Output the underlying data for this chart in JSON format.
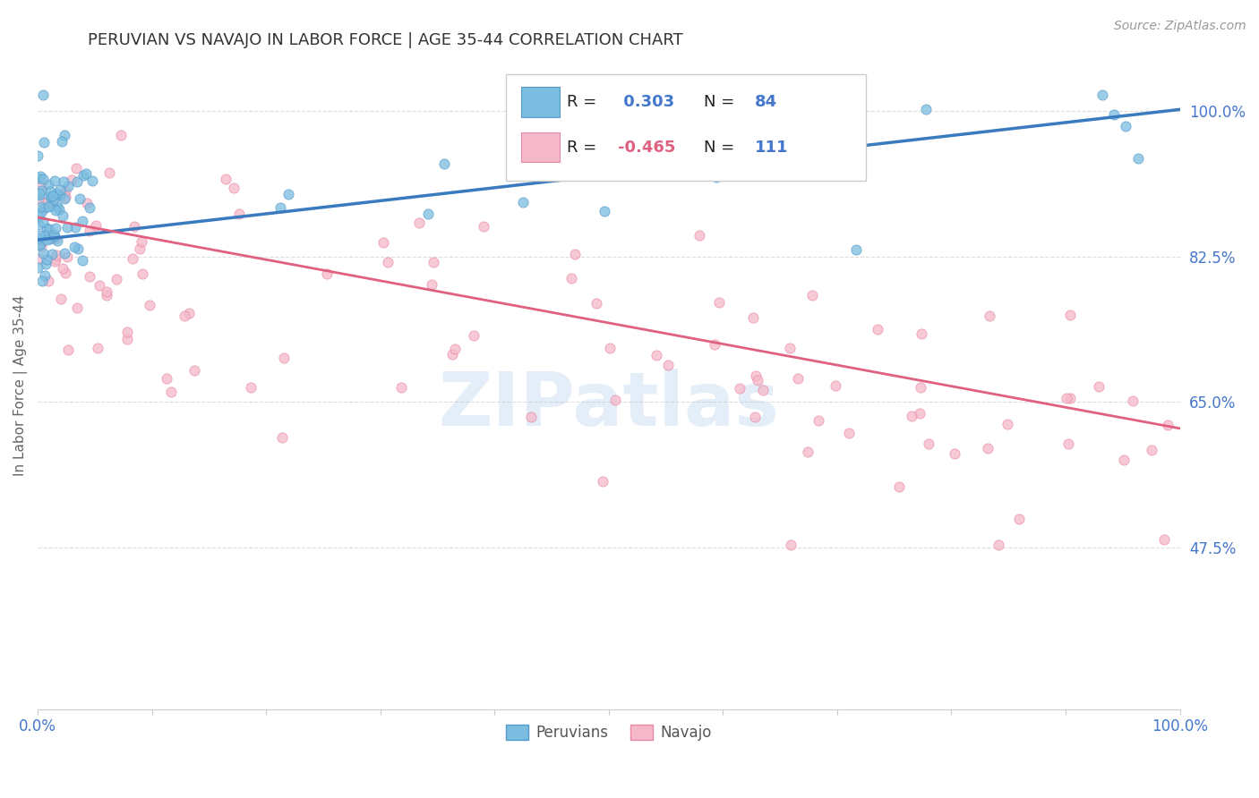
{
  "title": "PERUVIAN VS NAVAJO IN LABOR FORCE | AGE 35-44 CORRELATION CHART",
  "source_text": "Source: ZipAtlas.com",
  "ylabel": "In Labor Force | Age 35-44",
  "xlim": [
    0.0,
    1.0
  ],
  "ylim": [
    0.28,
    1.06
  ],
  "yticks": [
    0.475,
    0.65,
    0.825,
    1.0
  ],
  "ytick_labels": [
    "47.5%",
    "65.0%",
    "82.5%",
    "100.0%"
  ],
  "xtick_labels": [
    "0.0%",
    "",
    "",
    "",
    "",
    "",
    "",
    "",
    "",
    "",
    "100.0%"
  ],
  "peruvian_color": "#7bbde0",
  "navajo_color": "#f5b8c8",
  "peruvian_edge": "#5599cc",
  "navajo_edge": "#e888a8",
  "trend_peruvian_color": "#3a7abf",
  "trend_navajo_color": "#e06080",
  "R_peruvian": 0.303,
  "N_peruvian": 84,
  "R_navajo": -0.465,
  "N_navajo": 111,
  "watermark": "ZIPatlas",
  "watermark_color": "#a8c8e8",
  "background_color": "#ffffff",
  "grid_color": "#dddddd",
  "title_color": "#333333",
  "axis_label_color": "#666666",
  "tick_label_color": "#4477cc",
  "source_color": "#999999",
  "peruvian_seed": 42,
  "navajo_seed": 7,
  "blue_trend_x0": 0.0,
  "blue_trend_y0": 0.845,
  "blue_trend_x1": 1.0,
  "blue_trend_y1": 1.002,
  "pink_trend_x0": 0.0,
  "pink_trend_y0": 0.872,
  "pink_trend_x1": 1.0,
  "pink_trend_y1": 0.618
}
